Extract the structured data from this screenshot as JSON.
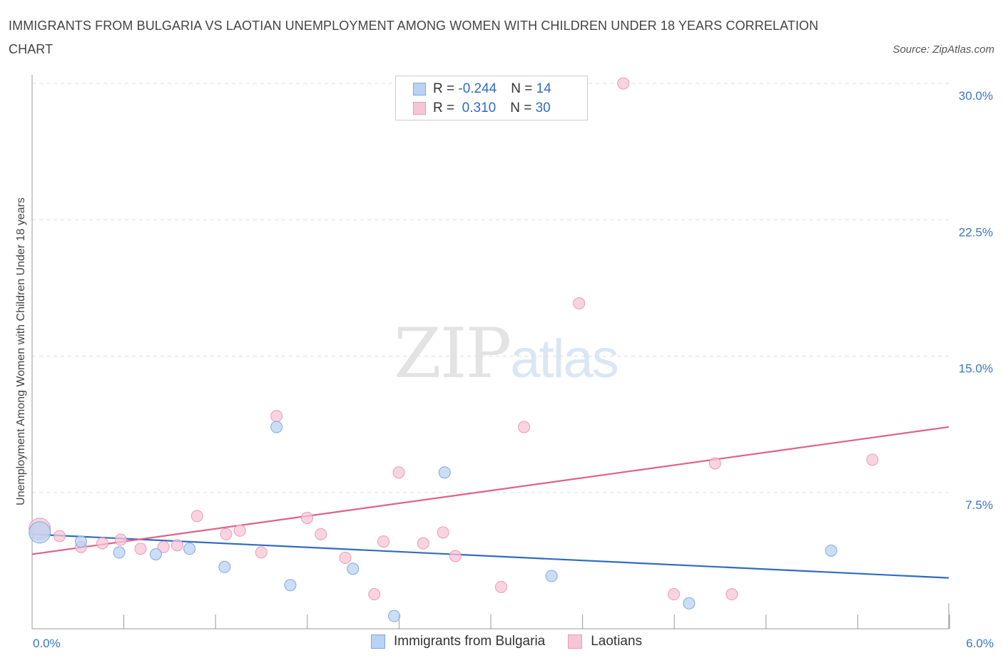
{
  "title": "IMMIGRANTS FROM BULGARIA VS LAOTIAN UNEMPLOYMENT AMONG WOMEN WITH CHILDREN UNDER 18 YEARS CORRELATION CHART",
  "source": "Source: ZipAtlas.com",
  "watermark": {
    "zip": "ZIP",
    "atlas": "atlas"
  },
  "legend": {
    "rows": [
      {
        "r_label": "R = ",
        "r_value": "-0.244",
        "n_label": "N = ",
        "n_value": "14",
        "color": "#b9d3f3"
      },
      {
        "r_label": "R = ",
        "r_value": " 0.310",
        "n_label": "N = ",
        "n_value": "30",
        "color": "#f7c6d6"
      }
    ]
  },
  "bottom_legend": [
    {
      "label": "Immigrants from Bulgaria",
      "color": "#b9d3f3",
      "border": "#7ea9e0"
    },
    {
      "label": "Laotians",
      "color": "#f7c6d6",
      "border": "#e79bb6"
    }
  ],
  "colors": {
    "blue_fill": "#b9d3f3",
    "blue_stroke": "#7ea9e0",
    "blue_line": "#2f6cc2",
    "pink_fill": "#f7c6d6",
    "pink_stroke": "#e79bb6",
    "pink_line": "#e0608a",
    "grid": "#dddddd",
    "axis": "#999999"
  },
  "chart_data": {
    "type": "scatter",
    "title": "IMMIGRANTS FROM BULGARIA VS LAOTIAN UNEMPLOYMENT AMONG WOMEN WITH CHILDREN UNDER 18 YEARS CORRELATION CHART",
    "xlabel": "",
    "ylabel": "Unemployment Among Women with Children Under 18 years",
    "xlim": [
      0,
      6
    ],
    "ylim": [
      0,
      30
    ],
    "x_tick_labels": [
      "0.0%",
      "6.0%"
    ],
    "y_ticks": [
      7.5,
      15.0,
      22.5,
      30.0
    ],
    "y_tick_labels": [
      "7.5%",
      "15.0%",
      "22.5%",
      "30.0%"
    ],
    "grid": true,
    "series": [
      {
        "name": "Immigrants from Bulgaria",
        "r": -0.244,
        "n": 14,
        "points": [
          {
            "x": 0.05,
            "y": 5.3,
            "big": true
          },
          {
            "x": 0.32,
            "y": 4.8
          },
          {
            "x": 0.57,
            "y": 4.2
          },
          {
            "x": 0.81,
            "y": 4.1
          },
          {
            "x": 1.03,
            "y": 4.4
          },
          {
            "x": 1.26,
            "y": 3.4
          },
          {
            "x": 1.6,
            "y": 11.1
          },
          {
            "x": 1.69,
            "y": 2.4
          },
          {
            "x": 2.1,
            "y": 3.3
          },
          {
            "x": 2.37,
            "y": 0.7
          },
          {
            "x": 2.7,
            "y": 8.6
          },
          {
            "x": 3.4,
            "y": 2.9
          },
          {
            "x": 4.3,
            "y": 1.4
          },
          {
            "x": 5.23,
            "y": 4.3
          }
        ],
        "trend": {
          "x0": 0.0,
          "y0": 5.2,
          "x1": 6.0,
          "y1": 2.8
        }
      },
      {
        "name": "Laotians",
        "r": 0.31,
        "n": 30,
        "points": [
          {
            "x": 0.05,
            "y": 5.5,
            "big": true
          },
          {
            "x": 0.18,
            "y": 5.1
          },
          {
            "x": 0.32,
            "y": 4.5
          },
          {
            "x": 0.46,
            "y": 4.7
          },
          {
            "x": 0.58,
            "y": 4.9
          },
          {
            "x": 0.71,
            "y": 4.4
          },
          {
            "x": 0.86,
            "y": 4.5
          },
          {
            "x": 0.95,
            "y": 4.6
          },
          {
            "x": 1.08,
            "y": 6.2
          },
          {
            "x": 1.27,
            "y": 5.2
          },
          {
            "x": 1.36,
            "y": 5.4
          },
          {
            "x": 1.5,
            "y": 4.2
          },
          {
            "x": 1.6,
            "y": 11.7
          },
          {
            "x": 1.8,
            "y": 6.1
          },
          {
            "x": 1.89,
            "y": 5.2
          },
          {
            "x": 2.05,
            "y": 3.9
          },
          {
            "x": 2.24,
            "y": 1.9
          },
          {
            "x": 2.3,
            "y": 4.8
          },
          {
            "x": 2.4,
            "y": 8.6
          },
          {
            "x": 2.56,
            "y": 4.7
          },
          {
            "x": 2.69,
            "y": 5.3
          },
          {
            "x": 2.77,
            "y": 4.0
          },
          {
            "x": 3.07,
            "y": 2.3
          },
          {
            "x": 3.22,
            "y": 11.1
          },
          {
            "x": 3.58,
            "y": 17.9
          },
          {
            "x": 3.87,
            "y": 30.0
          },
          {
            "x": 4.2,
            "y": 1.9
          },
          {
            "x": 4.47,
            "y": 9.1
          },
          {
            "x": 4.58,
            "y": 1.9
          },
          {
            "x": 5.5,
            "y": 9.3
          }
        ],
        "trend": {
          "x0": 0.0,
          "y0": 4.1,
          "x1": 6.0,
          "y1": 11.1
        }
      }
    ]
  }
}
